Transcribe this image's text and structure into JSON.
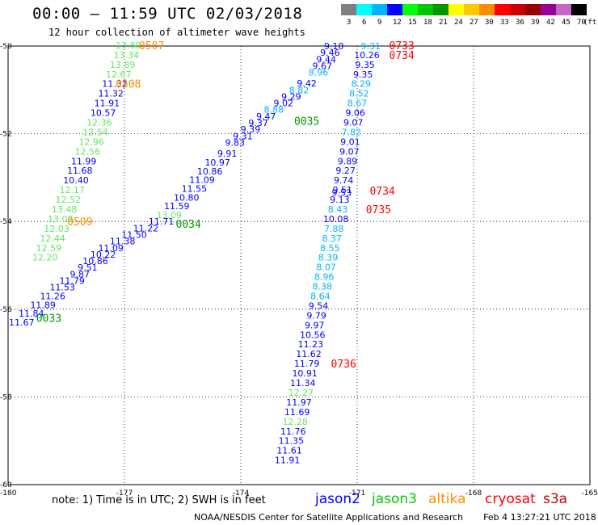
{
  "header": {
    "title": "00:00 – 11:59 UTC 02/03/2018",
    "subtitle": "12 hour collection of altimeter wave heights"
  },
  "legend": {
    "unit": "(ft)",
    "bins": [
      {
        "label": "3",
        "color": "#808080"
      },
      {
        "label": "6",
        "color": "#00ffff"
      },
      {
        "label": "9",
        "color": "#00b4ff"
      },
      {
        "label": "12",
        "color": "#0000ff"
      },
      {
        "label": "15",
        "color": "#00ff00"
      },
      {
        "label": "18",
        "color": "#00c800"
      },
      {
        "label": "21",
        "color": "#009600"
      },
      {
        "label": "24",
        "color": "#ffff00"
      },
      {
        "label": "27",
        "color": "#ffc800"
      },
      {
        "label": "30",
        "color": "#ff8c00"
      },
      {
        "label": "33",
        "color": "#ff0000"
      },
      {
        "label": "36",
        "color": "#c80000"
      },
      {
        "label": "39",
        "color": "#960000"
      },
      {
        "label": "42",
        "color": "#960096"
      },
      {
        "label": "45",
        "color": "#c864c8"
      },
      {
        "label": "70",
        "color": "#000000"
      }
    ]
  },
  "axes": {
    "lon_labels": [
      "-180",
      "-177",
      "-174",
      "-171",
      "-168",
      "-165"
    ],
    "lat_labels": [
      "-50",
      "-52",
      "-54",
      "-56",
      "-58",
      "-60"
    ]
  },
  "colors": {
    "jason2": "#0000ff",
    "jason3": "#00c800",
    "jason3_time": "#009600",
    "altika": "#ff8c00",
    "cryosat": "#ff0000",
    "c_light": "#00b4ff",
    "c_lgreen": "#64e664"
  },
  "chart_data": {
    "type": "scatter",
    "lon_range": [
      -180,
      -165
    ],
    "lat_range": [
      -60,
      -50
    ],
    "grid": true,
    "tracks": [
      {
        "name": "altika-a",
        "readings": [
          {
            "v": "13.80",
            "lon": -176.9,
            "lat": -49.98,
            "c": "c_lgreen"
          },
          {
            "v": "13.34",
            "lon": -176.95,
            "lat": -50.2,
            "c": "c_lgreen"
          },
          {
            "v": "13.89",
            "lon": -177.05,
            "lat": -50.42,
            "c": "c_lgreen"
          },
          {
            "v": "12.67",
            "lon": -177.15,
            "lat": -50.64,
            "c": "c_lgreen"
          },
          {
            "v": "11.32",
            "lon": -177.25,
            "lat": -50.86,
            "c": "jason2"
          },
          {
            "v": "11.32",
            "lon": -177.35,
            "lat": -51.08,
            "c": "jason2"
          },
          {
            "v": "11.91",
            "lon": -177.45,
            "lat": -51.3,
            "c": "jason2"
          },
          {
            "v": "10.57",
            "lon": -177.55,
            "lat": -51.52,
            "c": "jason2"
          },
          {
            "v": "12.36",
            "lon": -177.65,
            "lat": -51.74,
            "c": "c_lgreen"
          },
          {
            "v": "12.54",
            "lon": -177.75,
            "lat": -51.96,
            "c": "c_lgreen"
          },
          {
            "v": "12.96",
            "lon": -177.85,
            "lat": -52.18,
            "c": "c_lgreen"
          },
          {
            "v": "12.56",
            "lon": -177.95,
            "lat": -52.4,
            "c": "c_lgreen"
          },
          {
            "v": "11.99",
            "lon": -178.05,
            "lat": -52.62,
            "c": "jason2"
          },
          {
            "v": "11.68",
            "lon": -178.15,
            "lat": -52.84,
            "c": "jason2"
          },
          {
            "v": "10.40",
            "lon": -178.25,
            "lat": -53.06,
            "c": "jason2"
          },
          {
            "v": "12.17",
            "lon": -178.35,
            "lat": -53.28,
            "c": "c_lgreen"
          },
          {
            "v": "12.52",
            "lon": -178.45,
            "lat": -53.5,
            "c": "c_lgreen"
          },
          {
            "v": "13.48",
            "lon": -178.55,
            "lat": -53.72,
            "c": "c_lgreen"
          },
          {
            "v": "13.09",
            "lon": -178.65,
            "lat": -53.94,
            "c": "c_lgreen"
          },
          {
            "v": "12.03",
            "lon": -178.75,
            "lat": -54.16,
            "c": "c_lgreen"
          },
          {
            "v": "12.44",
            "lon": -178.85,
            "lat": -54.38,
            "c": "c_lgreen"
          },
          {
            "v": "12.59",
            "lon": -178.95,
            "lat": -54.6,
            "c": "c_lgreen"
          },
          {
            "v": "12.20",
            "lon": -179.05,
            "lat": -54.82,
            "c": "c_lgreen"
          }
        ],
        "times": [
          {
            "t": "0507",
            "lon": -176.3,
            "lat": -49.98,
            "c": "altika"
          },
          {
            "t": "0508",
            "lon": -176.9,
            "lat": -50.86,
            "c": "altika"
          },
          {
            "t": "0509",
            "lon": -178.15,
            "lat": -54.0,
            "c": "altika"
          }
        ]
      },
      {
        "name": "jason3-a",
        "readings": [
          {
            "v": "9.10",
            "lon": -171.6,
            "lat": -50.0,
            "c": "jason2"
          },
          {
            "v": "9.46",
            "lon": -171.7,
            "lat": -50.15,
            "c": "jason2"
          },
          {
            "v": "9.44",
            "lon": -171.8,
            "lat": -50.3,
            "c": "jason2"
          },
          {
            "v": "9.67",
            "lon": -171.9,
            "lat": -50.45,
            "c": "jason2"
          },
          {
            "v": "8.96",
            "lon": -172.0,
            "lat": -50.6,
            "c": "c_light"
          },
          {
            "v": "9.42",
            "lon": -172.3,
            "lat": -50.85,
            "c": "jason2"
          },
          {
            "v": "8.82",
            "lon": -172.5,
            "lat": -51.0,
            "c": "c_light"
          },
          {
            "v": "9.29",
            "lon": -172.7,
            "lat": -51.15,
            "c": "jason2"
          },
          {
            "v": "9.02",
            "lon": -172.9,
            "lat": -51.3,
            "c": "jason2"
          },
          {
            "v": "8.88",
            "lon": -173.15,
            "lat": -51.45,
            "c": "c_light"
          },
          {
            "v": "9.47",
            "lon": -173.35,
            "lat": -51.6,
            "c": "jason2"
          },
          {
            "v": "9.37",
            "lon": -173.55,
            "lat": -51.75,
            "c": "jason2"
          },
          {
            "v": "9.39",
            "lon": -173.75,
            "lat": -51.9,
            "c": "jason2"
          },
          {
            "v": "9.31",
            "lon": -173.95,
            "lat": -52.05,
            "c": "jason2"
          },
          {
            "v": "9.83",
            "lon": -174.15,
            "lat": -52.2,
            "c": "jason2"
          },
          {
            "v": "9.91",
            "lon": -174.35,
            "lat": -52.45,
            "c": "jason2"
          },
          {
            "v": "10.97",
            "lon": -174.6,
            "lat": -52.65,
            "c": "jason2"
          },
          {
            "v": "10.86",
            "lon": -174.8,
            "lat": -52.85,
            "c": "jason2"
          },
          {
            "v": "11.09",
            "lon": -175.0,
            "lat": -53.05,
            "c": "jason2"
          },
          {
            "v": "11.55",
            "lon": -175.2,
            "lat": -53.25,
            "c": "jason2"
          },
          {
            "v": "10.80",
            "lon": -175.4,
            "lat": -53.45,
            "c": "jason2"
          },
          {
            "v": "11.59",
            "lon": -175.65,
            "lat": -53.65,
            "c": "jason2"
          },
          {
            "v": "13.09",
            "lon": -175.85,
            "lat": -53.85,
            "c": "c_lgreen"
          },
          {
            "v": "11.71",
            "lon": -176.05,
            "lat": -54.0,
            "c": "jason2"
          },
          {
            "v": "11.22",
            "lon": -176.45,
            "lat": -54.15,
            "c": "jason2"
          },
          {
            "v": "11.50",
            "lon": -176.75,
            "lat": -54.3,
            "c": "jason2"
          },
          {
            "v": "11.38",
            "lon": -177.05,
            "lat": -54.45,
            "c": "jason2"
          },
          {
            "v": "11.09",
            "lon": -177.35,
            "lat": -54.6,
            "c": "jason2"
          },
          {
            "v": "10.22",
            "lon": -177.55,
            "lat": -54.75,
            "c": "jason2"
          },
          {
            "v": "10.86",
            "lon": -177.75,
            "lat": -54.9,
            "c": "jason2"
          },
          {
            "v": "9.51",
            "lon": -177.95,
            "lat": -55.05,
            "c": "jason2"
          },
          {
            "v": "9.87",
            "lon": -178.15,
            "lat": -55.2,
            "c": "jason2"
          },
          {
            "v": "11.79",
            "lon": -178.35,
            "lat": -55.35,
            "c": "jason2"
          },
          {
            "v": "11.53",
            "lon": -178.6,
            "lat": -55.5,
            "c": "jason2"
          },
          {
            "v": "11.26",
            "lon": -178.85,
            "lat": -55.7,
            "c": "jason2"
          },
          {
            "v": "11.89",
            "lon": -179.1,
            "lat": -55.9,
            "c": "jason2"
          },
          {
            "v": "11.84",
            "lon": -179.4,
            "lat": -56.1,
            "c": "jason2"
          },
          {
            "v": "11.67",
            "lon": -179.65,
            "lat": -56.3,
            "c": "jason2"
          }
        ],
        "times": [
          {
            "t": "0035",
            "lon": -172.3,
            "lat": -51.7,
            "c": "jason3_time"
          },
          {
            "t": "0034",
            "lon": -175.35,
            "lat": -54.05,
            "c": "jason3_time"
          },
          {
            "t": "0033",
            "lon": -178.95,
            "lat": -56.2,
            "c": "jason3_time"
          }
        ]
      },
      {
        "name": "cryosat-a",
        "readings": [
          {
            "v": "9.31",
            "lon": -170.65,
            "lat": -50.0,
            "c": "c_light"
          },
          {
            "v": "10.26",
            "lon": -170.75,
            "lat": -50.2,
            "c": "jason2"
          },
          {
            "v": "9.35",
            "lon": -170.8,
            "lat": -50.42,
            "c": "jason2"
          },
          {
            "v": "9.35",
            "lon": -170.85,
            "lat": -50.64,
            "c": "jason2"
          },
          {
            "v": "8.29",
            "lon": -170.9,
            "lat": -50.86,
            "c": "c_light"
          },
          {
            "v": "8.52",
            "lon": -170.95,
            "lat": -51.08,
            "c": "c_light"
          },
          {
            "v": "8.67",
            "lon": -171.0,
            "lat": -51.3,
            "c": "c_light"
          },
          {
            "v": "9.06",
            "lon": -171.05,
            "lat": -51.52,
            "c": "jason2"
          },
          {
            "v": "9.07",
            "lon": -171.1,
            "lat": -51.74,
            "c": "jason2"
          },
          {
            "v": "7.82",
            "lon": -171.15,
            "lat": -51.96,
            "c": "c_light"
          },
          {
            "v": "9.01",
            "lon": -171.18,
            "lat": -52.18,
            "c": "jason2"
          },
          {
            "v": "9.07",
            "lon": -171.2,
            "lat": -52.4,
            "c": "jason2"
          },
          {
            "v": "9.89",
            "lon": -171.25,
            "lat": -52.62,
            "c": "jason2"
          },
          {
            "v": "9.27",
            "lon": -171.3,
            "lat": -52.84,
            "c": "jason2"
          },
          {
            "v": "9.74",
            "lon": -171.35,
            "lat": -53.06,
            "c": "jason2"
          },
          {
            "v": "9.51",
            "lon": -171.38,
            "lat": -53.28,
            "c": "jason2"
          },
          {
            "v": "9.53",
            "lon": -171.4,
            "lat": -53.34,
            "c": "jason2"
          },
          {
            "v": "9.13",
            "lon": -171.45,
            "lat": -53.5,
            "c": "jason2"
          },
          {
            "v": "8.43",
            "lon": -171.5,
            "lat": -53.72,
            "c": "c_light"
          },
          {
            "v": "10.08",
            "lon": -171.55,
            "lat": -53.94,
            "c": "jason2"
          },
          {
            "v": "7.88",
            "lon": -171.6,
            "lat": -54.16,
            "c": "c_light"
          },
          {
            "v": "8.37",
            "lon": -171.65,
            "lat": -54.38,
            "c": "c_light"
          },
          {
            "v": "8.55",
            "lon": -171.7,
            "lat": -54.6,
            "c": "c_light"
          },
          {
            "v": "8.39",
            "lon": -171.75,
            "lat": -54.82,
            "c": "c_light"
          },
          {
            "v": "8.07",
            "lon": -171.8,
            "lat": -55.04,
            "c": "c_light"
          },
          {
            "v": "8.96",
            "lon": -171.85,
            "lat": -55.26,
            "c": "c_light"
          },
          {
            "v": "8.38",
            "lon": -171.9,
            "lat": -55.48,
            "c": "c_light"
          },
          {
            "v": "8.64",
            "lon": -171.95,
            "lat": -55.7,
            "c": "c_light"
          },
          {
            "v": "9.54",
            "lon": -172.0,
            "lat": -55.92,
            "c": "jason2"
          },
          {
            "v": "9.79",
            "lon": -172.05,
            "lat": -56.14,
            "c": "jason2"
          },
          {
            "v": "9.97",
            "lon": -172.1,
            "lat": -56.36,
            "c": "jason2"
          },
          {
            "v": "10.56",
            "lon": -172.15,
            "lat": -56.58,
            "c": "jason2"
          },
          {
            "v": "11.23",
            "lon": -172.2,
            "lat": -56.8,
            "c": "jason2"
          },
          {
            "v": "11.62",
            "lon": -172.25,
            "lat": -57.02,
            "c": "jason2"
          },
          {
            "v": "11.79",
            "lon": -172.3,
            "lat": -57.24,
            "c": "jason2"
          },
          {
            "v": "10.91",
            "lon": -172.35,
            "lat": -57.46,
            "c": "jason2"
          },
          {
            "v": "11.34",
            "lon": -172.4,
            "lat": -57.68,
            "c": "jason2"
          },
          {
            "v": "12.27",
            "lon": -172.45,
            "lat": -57.9,
            "c": "c_lgreen"
          },
          {
            "v": "11.97",
            "lon": -172.5,
            "lat": -58.12,
            "c": "jason2"
          },
          {
            "v": "11.69",
            "lon": -172.55,
            "lat": -58.34,
            "c": "jason2"
          },
          {
            "v": "12.28",
            "lon": -172.6,
            "lat": -58.56,
            "c": "c_lgreen"
          },
          {
            "v": "11.76",
            "lon": -172.65,
            "lat": -58.78,
            "c": "jason2"
          },
          {
            "v": "11.35",
            "lon": -172.7,
            "lat": -59.0,
            "c": "jason2"
          },
          {
            "v": "11.61",
            "lon": -172.75,
            "lat": -59.22,
            "c": "jason2"
          },
          {
            "v": "11.91",
            "lon": -172.8,
            "lat": -59.44,
            "c": "jason2"
          }
        ],
        "times": [
          {
            "t": "0733",
            "lon": -169.85,
            "lat": -49.98,
            "c": "cryosat"
          },
          {
            "t": "0734",
            "lon": -169.85,
            "lat": -50.2,
            "c": "cryosat"
          },
          {
            "t": "0734",
            "lon": -170.35,
            "lat": -53.3,
            "c": "cryosat"
          },
          {
            "t": "0735",
            "lon": -170.45,
            "lat": -53.72,
            "c": "cryosat"
          },
          {
            "t": "0736",
            "lon": -171.35,
            "lat": -57.24,
            "c": "cryosat"
          }
        ]
      }
    ]
  },
  "footer": {
    "note": "note: 1) Time is in UTC; 2) SWH is in feet",
    "satellites": [
      {
        "label": "jason2",
        "color": "#0000ff"
      },
      {
        "label": "jason3",
        "color": "#00c800"
      },
      {
        "label": "altika",
        "color": "#ff8c00"
      },
      {
        "label": "cryosat",
        "color": "#ff0000"
      },
      {
        "label": "s3a",
        "color": "#c80000"
      }
    ],
    "credit": "NOAA/NESDIS Center for Satellite Applications and Research",
    "timestamp": "Feb  4 13:27:21 UTC 2018"
  }
}
